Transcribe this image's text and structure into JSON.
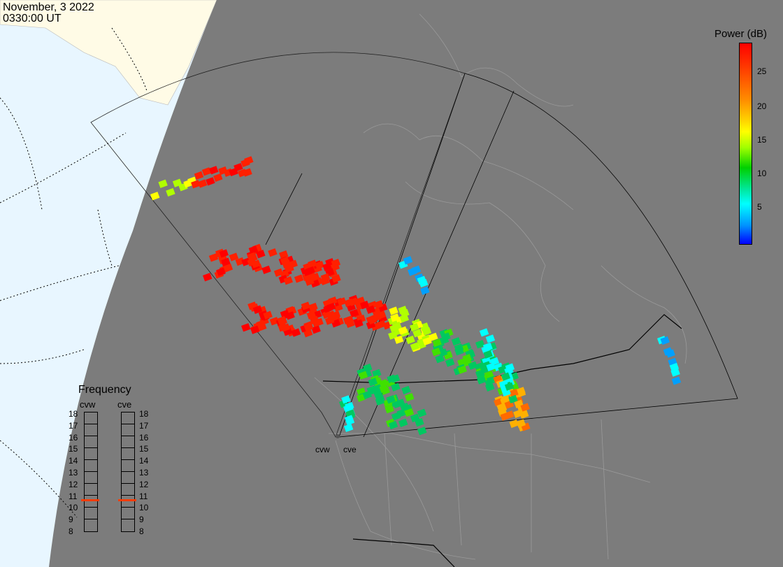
{
  "header": {
    "date": "November, 3 2022",
    "time": "0330:00 UT"
  },
  "colorbar": {
    "title": "Power (dB)",
    "ticks": [
      "25",
      "20",
      "15",
      "10",
      "5"
    ],
    "range": [
      0,
      29
    ]
  },
  "frequency": {
    "title": "Frequency",
    "radars": [
      {
        "name": "cvw",
        "selected": "11"
      },
      {
        "name": "cve",
        "selected": "11"
      }
    ],
    "levels": [
      "18",
      "17",
      "16",
      "15",
      "14",
      "13",
      "12",
      "11",
      "10",
      "9",
      "8"
    ]
  },
  "radar_labels": [
    "cvw",
    "cve"
  ],
  "colors": {
    "night": "#7c7c7c",
    "day_ocean": "#e8f6ff",
    "day_land": "#fffbe6",
    "fov_line": "#000000",
    "freq_mark": "#ff3c00"
  }
}
